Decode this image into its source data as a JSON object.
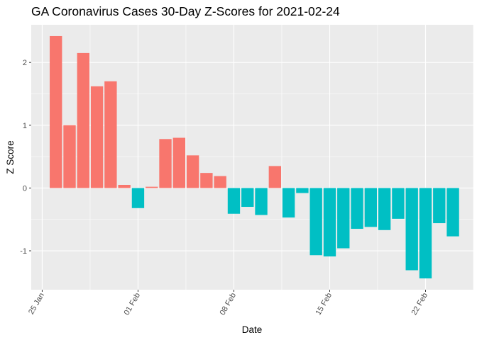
{
  "chart_data": {
    "type": "bar",
    "title": "GA Coronavirus Cases 30-Day Z-Scores for 2021-02-24",
    "xlabel": "Date",
    "ylabel": "Z Score",
    "x_tick_labels": [
      {
        "label": "25 Jan",
        "day": 0
      },
      {
        "label": "01 Feb",
        "day": 7
      },
      {
        "label": "08 Feb",
        "day": 14
      },
      {
        "label": "15 Feb",
        "day": 21
      },
      {
        "label": "22 Feb",
        "day": 28
      }
    ],
    "y_ticks": [
      -1,
      0,
      1,
      2
    ],
    "xlim": [
      -0.8,
      31.5
    ],
    "ylim": [
      -1.62,
      2.6
    ],
    "colors": {
      "positive": "#F8766D",
      "negative": "#00BFC4",
      "panel": "#EBEBEB",
      "grid": "#FFFFFF"
    },
    "series": [
      {
        "name": "Z Score",
        "dates": [
          "2021-01-26",
          "2021-01-27",
          "2021-01-28",
          "2021-01-29",
          "2021-01-30",
          "2021-01-31",
          "2021-02-01",
          "2021-02-02",
          "2021-02-03",
          "2021-02-04",
          "2021-02-05",
          "2021-02-06",
          "2021-02-07",
          "2021-02-08",
          "2021-02-09",
          "2021-02-10",
          "2021-02-11",
          "2021-02-12",
          "2021-02-13",
          "2021-02-14",
          "2021-02-15",
          "2021-02-16",
          "2021-02-17",
          "2021-02-18",
          "2021-02-19",
          "2021-02-20",
          "2021-02-21",
          "2021-02-22",
          "2021-02-23",
          "2021-02-24"
        ],
        "days": [
          1,
          2,
          3,
          4,
          5,
          6,
          7,
          8,
          9,
          10,
          11,
          12,
          13,
          14,
          15,
          16,
          17,
          18,
          19,
          20,
          21,
          22,
          23,
          24,
          25,
          26,
          27,
          28,
          29,
          30
        ],
        "values": [
          2.42,
          1.0,
          2.15,
          1.62,
          1.7,
          0.05,
          -0.32,
          0.02,
          0.78,
          0.8,
          0.52,
          0.24,
          0.19,
          -0.41,
          -0.3,
          -0.43,
          0.35,
          -0.47,
          -0.08,
          -1.07,
          -1.09,
          -0.96,
          -0.65,
          -0.62,
          -0.67,
          -0.49,
          -1.31,
          -1.44,
          -0.56,
          -0.77
        ]
      }
    ]
  }
}
